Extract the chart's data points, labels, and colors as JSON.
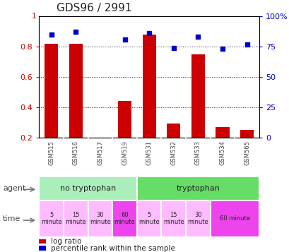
{
  "title": "GDS96 / 2991",
  "samples": [
    "GSM515",
    "GSM516",
    "GSM517",
    "GSM519",
    "GSM531",
    "GSM532",
    "GSM533",
    "GSM534",
    "GSM565"
  ],
  "log_ratio": [
    0.82,
    0.82,
    0.0,
    0.44,
    0.88,
    0.29,
    0.75,
    0.27,
    0.25
  ],
  "percentile": [
    85,
    87,
    0,
    81,
    86,
    74,
    83,
    73,
    77
  ],
  "bar_color": "#cc0000",
  "dot_color": "#0000cc",
  "ylim_left": [
    0.2,
    1.0
  ],
  "ylim_right": [
    0,
    100
  ],
  "yticks_left": [
    0.2,
    0.4,
    0.6,
    0.8
  ],
  "yticks_right": [
    0,
    25,
    50,
    75,
    100
  ],
  "yticklabels_left": [
    "0.2",
    "0.4",
    "0.6",
    "0.8"
  ],
  "yticklabels_right": [
    "0",
    "25",
    "50",
    "75",
    "100%"
  ],
  "agent_groups": [
    {
      "label": "no tryptophan",
      "start": 0,
      "end": 4,
      "color": "#aaeebb"
    },
    {
      "label": "tryptophan",
      "start": 4,
      "end": 9,
      "color": "#66dd66"
    }
  ],
  "time_groups": [
    {
      "label": "5\nminute",
      "start": 0,
      "end": 1,
      "color": "#ffbbff"
    },
    {
      "label": "15\nminute",
      "start": 1,
      "end": 2,
      "color": "#ffbbff"
    },
    {
      "label": "30\nminute",
      "start": 2,
      "end": 3,
      "color": "#ffbbff"
    },
    {
      "label": "60\nminute",
      "start": 3,
      "end": 4,
      "color": "#ee44ee"
    },
    {
      "label": "5\nminute",
      "start": 4,
      "end": 5,
      "color": "#ffbbff"
    },
    {
      "label": "15\nminute",
      "start": 5,
      "end": 6,
      "color": "#ffbbff"
    },
    {
      "label": "30\nminute",
      "start": 6,
      "end": 7,
      "color": "#ffbbff"
    },
    {
      "label": "60 minute",
      "start": 7,
      "end": 9,
      "color": "#ee44ee"
    }
  ],
  "tick_color_left": "#cc0000",
  "tick_color_right": "#0000cc",
  "background_color": "#ffffff",
  "plot_bg": "#ffffff",
  "bar_bottom": 0.2,
  "bar_width": 0.55,
  "sample_label_color": "#444444",
  "sample_bg_color": "#cccccc",
  "grid_linestyle": "dotted",
  "grid_color": "#222222",
  "grid_linewidth": 0.7,
  "left_label_color": "#555555",
  "legend_red_label": "log ratio",
  "legend_blue_label": "percentile rank within the sample"
}
